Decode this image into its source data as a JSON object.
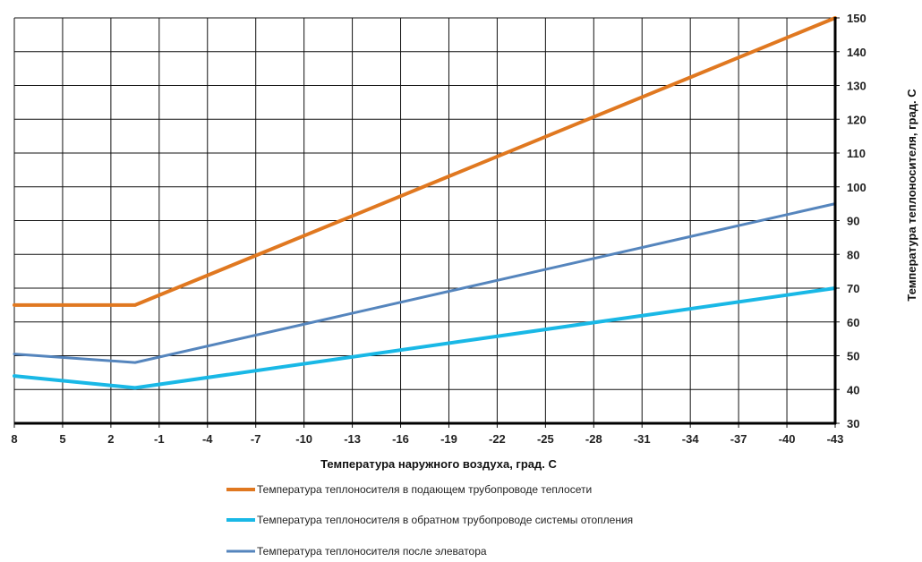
{
  "chart_data": {
    "type": "line",
    "xlabel": "Температура наружного воздуха, град. С",
    "ylabel": "Температура теплоносителя, град. С",
    "xlim": [
      8,
      -43
    ],
    "ylim": [
      30,
      150
    ],
    "x_ticks": [
      8,
      5,
      2,
      -1,
      -4,
      -7,
      -10,
      -13,
      -16,
      -19,
      -22,
      -25,
      -28,
      -31,
      -34,
      -37,
      -40,
      -43
    ],
    "y_ticks": [
      30,
      40,
      50,
      60,
      70,
      80,
      90,
      100,
      110,
      120,
      130,
      140,
      150
    ],
    "x_tick_labels": [
      "8",
      "5",
      "2",
      "-1",
      "-4",
      "-7",
      "-10",
      "-13",
      "-16",
      "-19",
      "-22",
      "-25",
      "-28",
      "-31",
      "-34",
      "-37",
      "-40",
      "-43"
    ],
    "y_tick_labels": [
      "30",
      "40",
      "50",
      "60",
      "70",
      "80",
      "90",
      "100",
      "110",
      "120",
      "130",
      "140",
      "150"
    ],
    "grid": true,
    "legend_position": "bottom",
    "series": [
      {
        "name": "Температура теплоносителя в подающем трубопроводе теплосети",
        "color": "#e07820",
        "x": [
          8,
          0.5,
          -43
        ],
        "y": [
          65,
          65,
          150
        ]
      },
      {
        "name": "Температура теплоносителя в обратном трубопроводе  системы отопления",
        "color": "#19b8e6",
        "x": [
          8,
          0.5,
          -43
        ],
        "y": [
          44,
          40.5,
          70
        ]
      },
      {
        "name": "Температура теплоносителя после элеватора",
        "color": "#5585bd",
        "x": [
          8,
          0.5,
          -43
        ],
        "y": [
          50.5,
          48,
          95
        ]
      }
    ]
  }
}
